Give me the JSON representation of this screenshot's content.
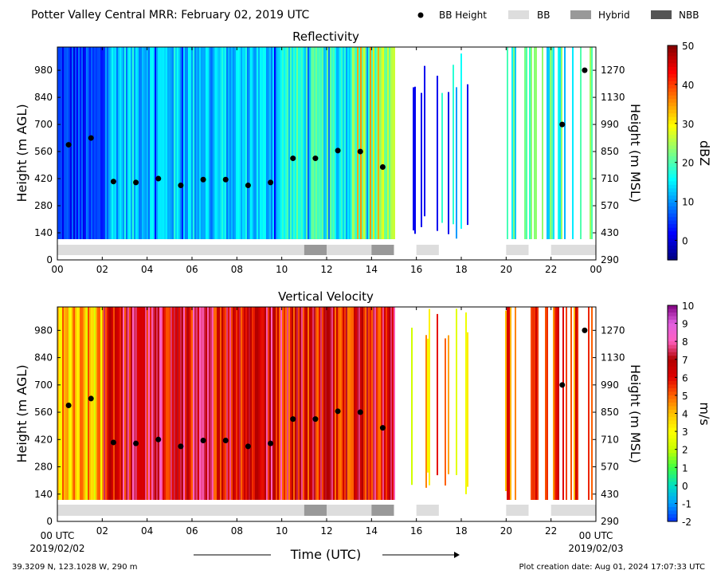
{
  "suptitle": "Potter Valley Central MRR:  February 02, 2019 UTC",
  "legend": [
    {
      "label": "BB Height",
      "kind": "marker",
      "color": "#000000"
    },
    {
      "label": "BB",
      "kind": "patch",
      "color": "#dddddd"
    },
    {
      "label": "Hybrid",
      "kind": "patch",
      "color": "#999999"
    },
    {
      "label": "NBB",
      "kind": "patch",
      "color": "#555555"
    }
  ],
  "location_text": "39.3209 N, 123.1028 W, 290 m",
  "creation_text": "Plot creation date: Aug 01, 2024 17:07:33 UTC",
  "xlabel": "Time (UTC)",
  "start_label": [
    "00 UTC",
    "2019/02/02"
  ],
  "end_label": [
    "00 UTC",
    "2019/02/03"
  ],
  "chart_data": [
    {
      "type": "heatmap",
      "title": "Reflectivity",
      "xlim": [
        0,
        24
      ],
      "x_ticks": [
        "00",
        "02",
        "04",
        "06",
        "08",
        "10",
        "12",
        "14",
        "16",
        "18",
        "20",
        "22",
        "00"
      ],
      "ylabel": "Height (m AGL)",
      "ylim": [
        0,
        1100
      ],
      "y_ticks": [
        0,
        140,
        280,
        420,
        560,
        700,
        840,
        980
      ],
      "ylabel_right": "Height (m MSL)",
      "y_ticks_right": [
        290,
        430,
        570,
        710,
        850,
        990,
        1130,
        1270
      ],
      "colorbar": {
        "label": "dBZ",
        "range": [
          -5,
          50
        ],
        "ticks": [
          0,
          10,
          20,
          30,
          40,
          50
        ],
        "colors": [
          "#00007f",
          "#0000ff",
          "#007fff",
          "#00ffff",
          "#7fff7f",
          "#ffff00",
          "#ff7f00",
          "#ff0000",
          "#7f0000"
        ]
      },
      "data_gaps_hours": [
        [
          15,
          15.5
        ],
        [
          16.9,
          17.1
        ],
        [
          18.4,
          19.8
        ]
      ],
      "bb_height": {
        "x": [
          0.5,
          1.5,
          2.5,
          3.5,
          4.5,
          5.5,
          6.5,
          7.5,
          8.5,
          9.5,
          10.5,
          11.5,
          12.5,
          13.5,
          14.5,
          22.5,
          23.5
        ],
        "y": [
          595,
          630,
          405,
          400,
          420,
          385,
          415,
          415,
          385,
          400,
          525,
          525,
          565,
          560,
          480,
          700,
          980
        ]
      },
      "bright_band_type": [
        {
          "start": 0,
          "end": 11,
          "type": "BB"
        },
        {
          "start": 11,
          "end": 12,
          "type": "Hybrid"
        },
        {
          "start": 12,
          "end": 14,
          "type": "BB"
        },
        {
          "start": 14,
          "end": 15,
          "type": "Hybrid"
        },
        {
          "start": 16,
          "end": 17,
          "type": "BB"
        },
        {
          "start": 20,
          "end": 21,
          "type": "BB"
        },
        {
          "start": 22,
          "end": 24,
          "type": "BB"
        }
      ]
    },
    {
      "type": "heatmap",
      "title": "Vertical Velocity",
      "xlim": [
        0,
        24
      ],
      "x_ticks": [
        "",
        "02",
        "04",
        "06",
        "08",
        "10",
        "12",
        "14",
        "16",
        "18",
        "20",
        "22",
        ""
      ],
      "ylabel": "Height (m AGL)",
      "ylim": [
        0,
        1100
      ],
      "y_ticks": [
        0,
        140,
        280,
        420,
        560,
        700,
        840,
        980
      ],
      "ylabel_right": "Height (m MSL)",
      "y_ticks_right": [
        290,
        430,
        570,
        710,
        850,
        990,
        1130,
        1270
      ],
      "colorbar": {
        "label": "m/s",
        "range": [
          -2,
          10
        ],
        "ticks": [
          -2,
          -1,
          0,
          1,
          2,
          3,
          4,
          5,
          6,
          7,
          8,
          9,
          10
        ],
        "colors": [
          "#0030ff",
          "#00a0ff",
          "#00e0c0",
          "#40ff40",
          "#c8ff00",
          "#ffff00",
          "#ffc000",
          "#ff6000",
          "#e00000",
          "#b00000",
          "#ff60c0",
          "#e060e0",
          "#800080"
        ]
      },
      "data_gaps_hours": [
        [
          15,
          15.5
        ],
        [
          16.9,
          17.1
        ],
        [
          18.4,
          19.8
        ]
      ],
      "bb_height": {
        "x": [
          0.5,
          1.5,
          2.5,
          3.5,
          4.5,
          5.5,
          6.5,
          7.5,
          8.5,
          9.5,
          10.5,
          11.5,
          12.5,
          13.5,
          14.5,
          22.5,
          23.5
        ],
        "y": [
          595,
          630,
          405,
          400,
          420,
          385,
          415,
          415,
          385,
          400,
          525,
          525,
          565,
          560,
          480,
          700,
          980
        ]
      },
      "bright_band_type": [
        {
          "start": 0,
          "end": 11,
          "type": "BB"
        },
        {
          "start": 11,
          "end": 12,
          "type": "Hybrid"
        },
        {
          "start": 12,
          "end": 14,
          "type": "BB"
        },
        {
          "start": 14,
          "end": 15,
          "type": "Hybrid"
        },
        {
          "start": 16,
          "end": 17,
          "type": "BB"
        },
        {
          "start": 20,
          "end": 21,
          "type": "BB"
        },
        {
          "start": 22,
          "end": 24,
          "type": "BB"
        }
      ]
    }
  ]
}
